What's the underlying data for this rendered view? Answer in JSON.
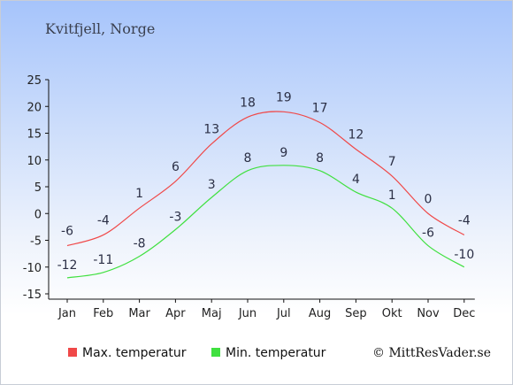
{
  "location": "Kvitfjell, Norge",
  "credit": "© MittResVader.se",
  "colors": {
    "max": "#f04848",
    "min": "#40e040"
  },
  "chart_data": {
    "type": "line",
    "title": "",
    "xlabel": "",
    "ylabel": "",
    "categories": [
      "Jan",
      "Feb",
      "Mar",
      "Apr",
      "Maj",
      "Jun",
      "Jul",
      "Aug",
      "Sep",
      "Okt",
      "Nov",
      "Dec"
    ],
    "ylim": [
      -15,
      25
    ],
    "yticks": [
      25,
      20,
      15,
      10,
      5,
      0,
      -5,
      -10,
      -15
    ],
    "grid": false,
    "legend_placement": "bottom",
    "series": [
      {
        "name": "Max. temperatur",
        "color": "#f04848",
        "values": [
          -6,
          -4,
          1,
          6,
          13,
          18,
          19,
          17,
          12,
          7,
          0,
          -4
        ]
      },
      {
        "name": "Min. temperatur",
        "color": "#40e040",
        "values": [
          -12,
          -11,
          -8,
          -3,
          3,
          8,
          9,
          8,
          4,
          1,
          -6,
          -10
        ]
      }
    ]
  }
}
